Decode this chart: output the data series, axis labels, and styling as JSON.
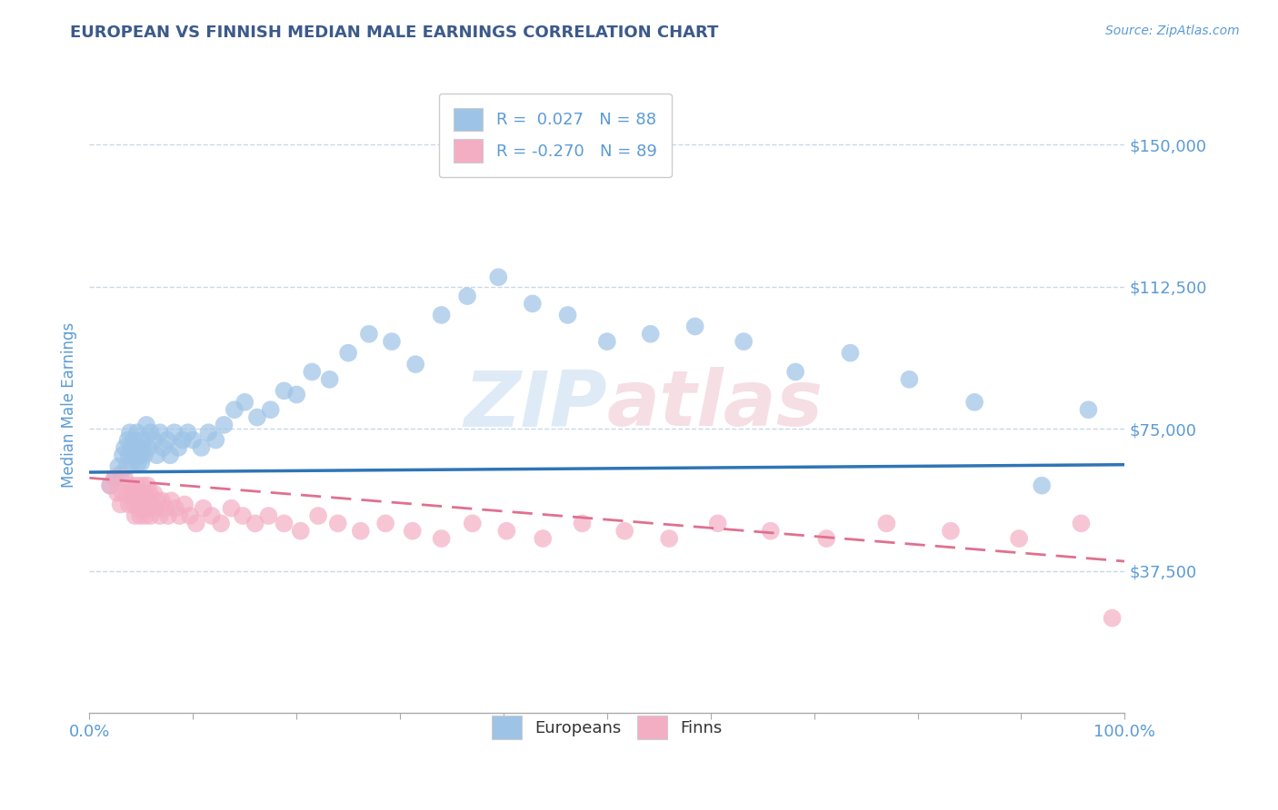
{
  "title": "EUROPEAN VS FINNISH MEDIAN MALE EARNINGS CORRELATION CHART",
  "source": "Source: ZipAtlas.com",
  "ylabel": "Median Male Earnings",
  "xlabel": "",
  "xlim": [
    0.0,
    1.0
  ],
  "ylim": [
    0,
    162500
  ],
  "yticks": [
    37500,
    75000,
    112500,
    150000
  ],
  "ytick_labels": [
    "$37,500",
    "$75,000",
    "$112,500",
    "$150,000"
  ],
  "title_color": "#3c5a8a",
  "axis_color": "#5b9bd5",
  "grid_color": "#c8d8ea",
  "blue_color": "#9dc3e6",
  "pink_color": "#f4aec4",
  "blue_line_color": "#2e75b6",
  "pink_line_color": "#e07090",
  "watermark_color": "#d8e8f0",
  "europeans_x": [
    0.02,
    0.025,
    0.028,
    0.03,
    0.032,
    0.034,
    0.036,
    0.037,
    0.038,
    0.039,
    0.04,
    0.041,
    0.042,
    0.043,
    0.044,
    0.045,
    0.046,
    0.047,
    0.048,
    0.049,
    0.05,
    0.051,
    0.052,
    0.053,
    0.055,
    0.057,
    0.059,
    0.062,
    0.065,
    0.068,
    0.071,
    0.075,
    0.078,
    0.082,
    0.086,
    0.09,
    0.095,
    0.1,
    0.108,
    0.115,
    0.122,
    0.13,
    0.14,
    0.15,
    0.162,
    0.175,
    0.188,
    0.2,
    0.215,
    0.232,
    0.25,
    0.27,
    0.292,
    0.315,
    0.34,
    0.365,
    0.395,
    0.428,
    0.462,
    0.5,
    0.542,
    0.585,
    0.632,
    0.682,
    0.735,
    0.792,
    0.855,
    0.92,
    0.965
  ],
  "europeans_y": [
    60000,
    62000,
    65000,
    63000,
    68000,
    70000,
    65000,
    72000,
    68000,
    74000,
    70000,
    66000,
    68000,
    72000,
    70000,
    68000,
    74000,
    66000,
    70000,
    68000,
    66000,
    70000,
    72000,
    68000,
    76000,
    70000,
    74000,
    72000,
    68000,
    74000,
    70000,
    72000,
    68000,
    74000,
    70000,
    72000,
    74000,
    72000,
    70000,
    74000,
    72000,
    76000,
    80000,
    82000,
    78000,
    80000,
    85000,
    84000,
    90000,
    88000,
    95000,
    100000,
    98000,
    92000,
    105000,
    110000,
    115000,
    108000,
    105000,
    98000,
    100000,
    102000,
    98000,
    90000,
    95000,
    88000,
    82000,
    60000,
    80000
  ],
  "finns_x": [
    0.02,
    0.024,
    0.027,
    0.03,
    0.032,
    0.034,
    0.036,
    0.038,
    0.04,
    0.042,
    0.043,
    0.044,
    0.045,
    0.046,
    0.047,
    0.048,
    0.049,
    0.05,
    0.051,
    0.052,
    0.053,
    0.054,
    0.055,
    0.056,
    0.057,
    0.058,
    0.059,
    0.06,
    0.062,
    0.064,
    0.066,
    0.068,
    0.07,
    0.073,
    0.076,
    0.079,
    0.083,
    0.087,
    0.092,
    0.097,
    0.103,
    0.11,
    0.118,
    0.127,
    0.137,
    0.148,
    0.16,
    0.173,
    0.188,
    0.204,
    0.221,
    0.24,
    0.262,
    0.286,
    0.312,
    0.34,
    0.37,
    0.403,
    0.438,
    0.476,
    0.517,
    0.56,
    0.607,
    0.658,
    0.712,
    0.77,
    0.832,
    0.898,
    0.958,
    0.988
  ],
  "finns_y": [
    60000,
    62000,
    58000,
    55000,
    58000,
    62000,
    58000,
    55000,
    60000,
    55000,
    58000,
    52000,
    56000,
    60000,
    54000,
    58000,
    52000,
    56000,
    60000,
    55000,
    58000,
    52000,
    56000,
    60000,
    54000,
    58000,
    52000,
    55000,
    58000,
    54000,
    56000,
    52000,
    56000,
    54000,
    52000,
    56000,
    54000,
    52000,
    55000,
    52000,
    50000,
    54000,
    52000,
    50000,
    54000,
    52000,
    50000,
    52000,
    50000,
    48000,
    52000,
    50000,
    48000,
    50000,
    48000,
    46000,
    50000,
    48000,
    46000,
    50000,
    48000,
    46000,
    50000,
    48000,
    46000,
    50000,
    48000,
    46000,
    50000,
    25000
  ],
  "blue_line_x": [
    0.0,
    1.0
  ],
  "blue_line_y": [
    63500,
    65500
  ],
  "pink_line_x": [
    0.0,
    1.0
  ],
  "pink_line_y": [
    62000,
    40000
  ]
}
